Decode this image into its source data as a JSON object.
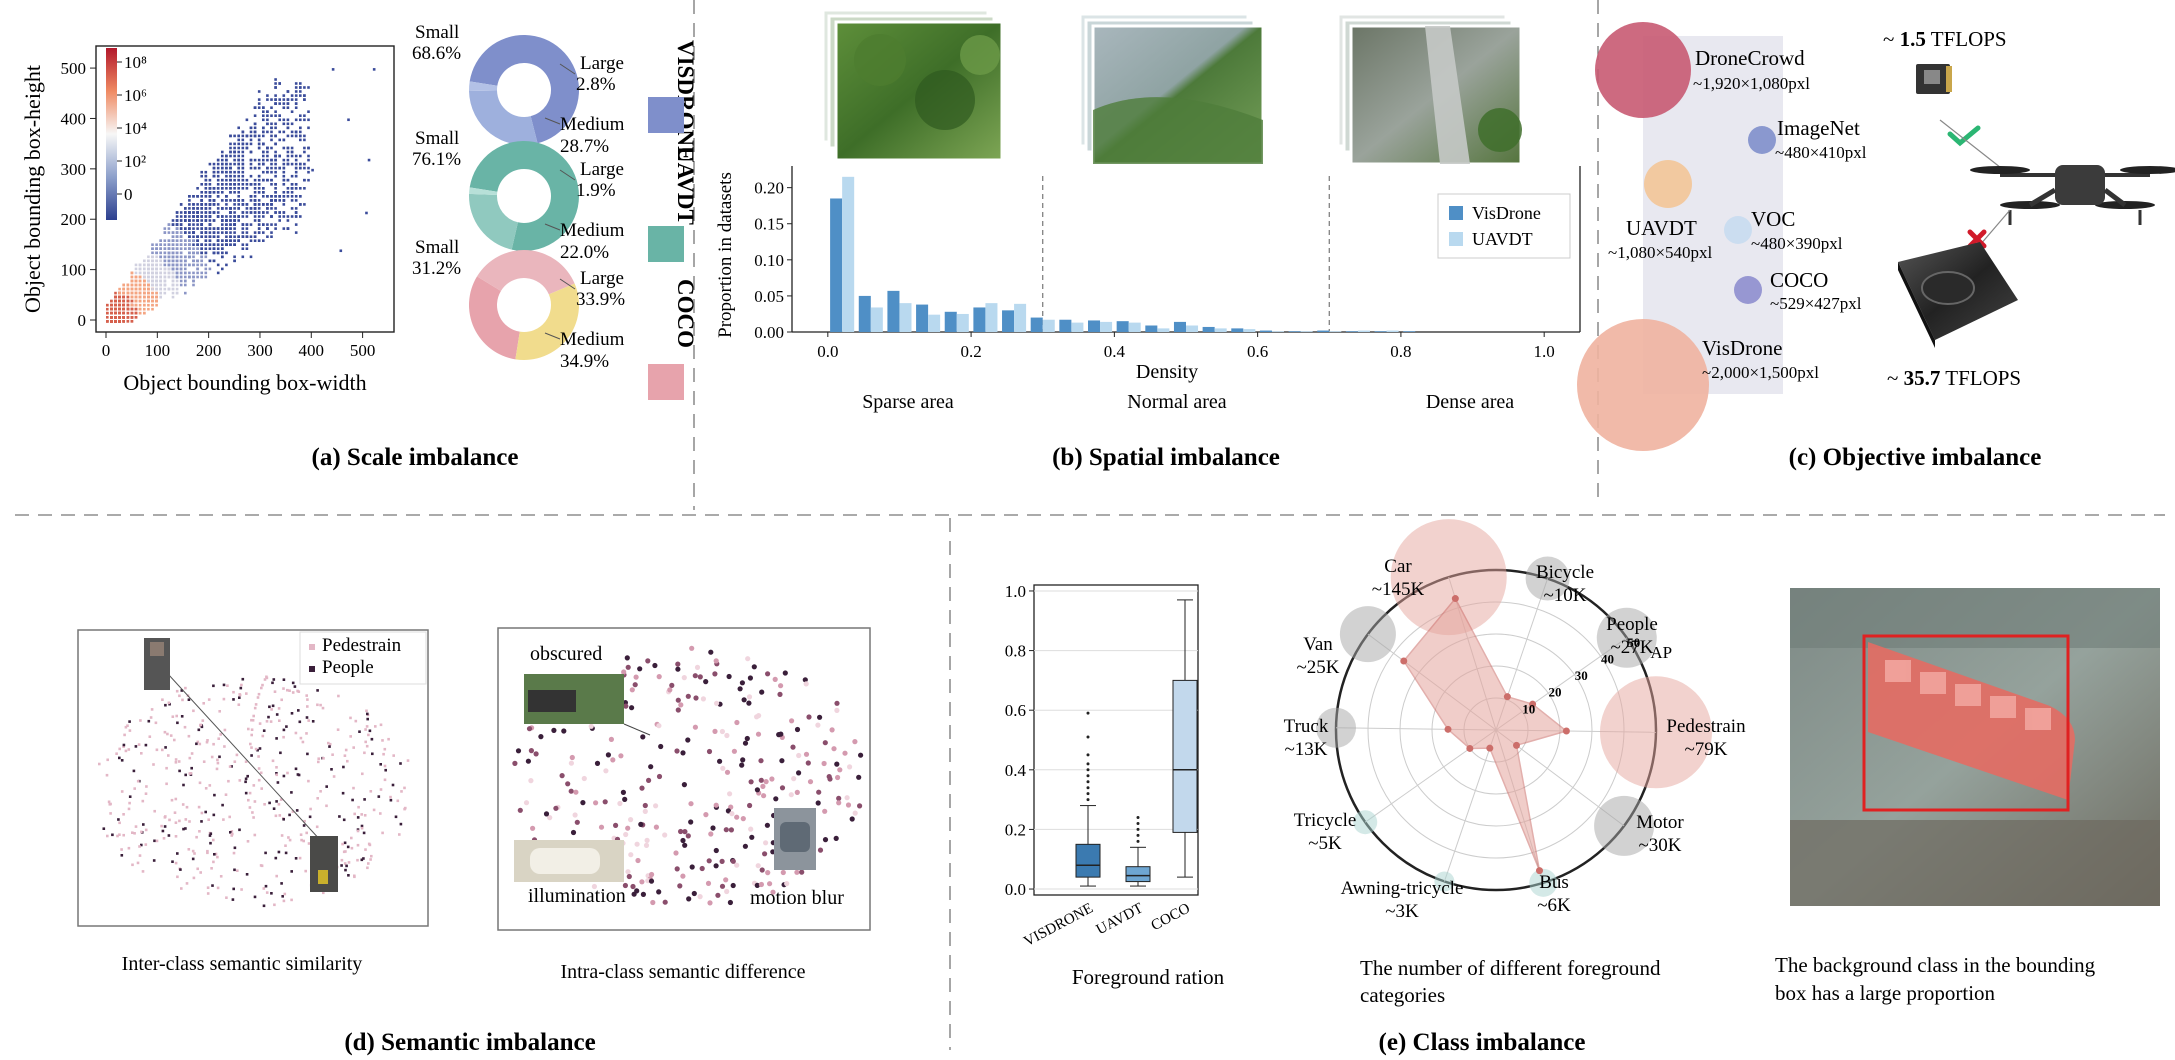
{
  "colors": {
    "visdrone": "#4f8fc6",
    "uavdt": "#b9d9ef",
    "donut_visdrone": "#7f8fcb",
    "donut_uavdt": "#69b4a6",
    "donut_coco": "#e7a3ac",
    "donut_coco_large": "#f1dc8d",
    "radar": "#e5a59d",
    "radar_line": "#cc6e6a",
    "pedestrain": "#e3b7c6",
    "people": "#3a1f3a",
    "red_box": "#e02121",
    "check": "#2bb673",
    "cross": "#d11a2a"
  },
  "captions": {
    "a": "(a) Scale imbalance",
    "b": "(b) Spatial imbalance",
    "c": "(c) Objective imbalance",
    "d": "(d) Semantic imbalance",
    "e": "(e) Class imbalance"
  },
  "panel_a": {
    "xlabel": "Object bounding box-width",
    "ylabel": "Object bounding box-height",
    "xticks": [
      "0",
      "100",
      "200",
      "300",
      "400",
      "500"
    ],
    "yticks": [
      "0",
      "100",
      "200",
      "300",
      "400",
      "500"
    ],
    "colorbar_ticks": [
      "10⁸",
      "10⁶",
      "10⁴",
      "10²",
      "0"
    ],
    "donuts": [
      {
        "dataset": "VISDRONE",
        "small_label": "Small",
        "small": "68.6%",
        "large_label": "Large",
        "large": "2.8%",
        "medium_label": "Medium",
        "medium": "28.7%"
      },
      {
        "dataset": "UAVDT",
        "small_label": "Small",
        "small": "76.1%",
        "large_label": "Large",
        "large": "1.9%",
        "medium_label": "Medium",
        "medium": "22.0%"
      },
      {
        "dataset": "COCO",
        "small_label": "Small",
        "small": "31.2%",
        "large_label": "Large",
        "large": "33.9%",
        "medium_label": "Medium",
        "medium": "34.9%"
      }
    ]
  },
  "panel_b": {
    "regions": [
      "Sparse area",
      "Normal area",
      "Dense area"
    ]
  },
  "panel_c": {
    "top_flops": {
      "prefix": "~ ",
      "value": "1.5",
      "unit": " TFLOPS"
    },
    "bottom_flops": {
      "prefix": "~ ",
      "value": "35.7",
      "unit": " TFLOPS"
    },
    "datasets": [
      {
        "name": "DroneCrowd",
        "res": "~1,920×1,080pxl",
        "color": "#c85a72"
      },
      {
        "name": "ImageNet",
        "res": "~480×410pxl",
        "color": "#7f8fcb"
      },
      {
        "name": "UAVDT",
        "res": "~1,080×540pxl",
        "color": "#f3c597"
      },
      {
        "name": "VOC",
        "res": "~480×390pxl",
        "color": "#c8dcef"
      },
      {
        "name": "COCO",
        "res": "~529×427pxl",
        "color": "#8e8ece"
      },
      {
        "name": "VisDrone",
        "res": "~2,000×1,500pxl",
        "color": "#f0b3a0"
      }
    ]
  },
  "panel_d": {
    "left_caption": "Inter-class semantic similarity",
    "right_caption": "Intra-class semantic difference",
    "legend": [
      "Pedestrain",
      "People"
    ],
    "labels": {
      "obscured": "obscured",
      "illumination": "illumination",
      "motion_blur": "motion blur"
    }
  },
  "panel_e": {
    "box_caption": "Foreground ration",
    "radar_caption_1": "The number of different foreground",
    "radar_caption_2": "categories",
    "image_caption_1": "The background class in the bounding",
    "image_caption_2": "box has a large proportion",
    "radar_ap_label": "AP",
    "radar_ap_ticks": [
      "10",
      "20",
      "30",
      "40",
      "50"
    ]
  },
  "chart_data": [
    {
      "type": "scatter",
      "xlabel": "Object bounding box-width",
      "ylabel": "Object bounding box-height",
      "xlim": [
        0,
        530
      ],
      "ylim": [
        0,
        520
      ],
      "colorbar": "log count 0 to 10^8",
      "density_trend": "dense near origin, spreading along y≈0.8x"
    },
    {
      "type": "pie",
      "title": "VISDRONE",
      "categories": [
        "Small",
        "Medium",
        "Large"
      ],
      "values": [
        68.6,
        28.7,
        2.8
      ]
    },
    {
      "type": "pie",
      "title": "UAVDT",
      "categories": [
        "Small",
        "Medium",
        "Large"
      ],
      "values": [
        76.1,
        22.0,
        1.9
      ]
    },
    {
      "type": "pie",
      "title": "COCO",
      "categories": [
        "Small",
        "Medium",
        "Large"
      ],
      "values": [
        31.2,
        34.9,
        33.9
      ]
    },
    {
      "type": "bar",
      "xlabel": "Density",
      "ylabel": "Proportion in datasets",
      "xlim": [
        -0.05,
        1.05
      ],
      "ylim": [
        0,
        0.23
      ],
      "xticks": [
        0.0,
        0.2,
        0.4,
        0.6,
        0.8,
        1.0
      ],
      "yticks": [
        0.0,
        0.05,
        0.1,
        0.15,
        0.2
      ],
      "dividers": [
        0.3,
        0.7
      ],
      "legend_position": "right",
      "x": [
        0.02,
        0.06,
        0.1,
        0.14,
        0.18,
        0.22,
        0.26,
        0.3,
        0.34,
        0.38,
        0.42,
        0.46,
        0.5,
        0.54,
        0.58,
        0.62,
        0.66,
        0.7,
        0.74,
        0.78,
        0.82,
        0.86,
        0.9,
        0.94,
        0.98
      ],
      "series": [
        {
          "name": "VisDrone",
          "values": [
            0.185,
            0.05,
            0.057,
            0.038,
            0.028,
            0.034,
            0.03,
            0.02,
            0.017,
            0.016,
            0.015,
            0.009,
            0.014,
            0.007,
            0.005,
            0.002,
            0.001,
            0.002,
            0.001,
            0.001,
            0.001,
            0.0,
            0.0,
            0.0,
            0.0
          ]
        },
        {
          "name": "UAVDT",
          "values": [
            0.215,
            0.034,
            0.04,
            0.024,
            0.025,
            0.04,
            0.039,
            0.017,
            0.013,
            0.014,
            0.013,
            0.005,
            0.009,
            0.005,
            0.004,
            0.001,
            0.001,
            0.001,
            0.002,
            0.002,
            0.0,
            0.0,
            0.0,
            0.0,
            0.0
          ]
        }
      ]
    },
    {
      "type": "box",
      "xlabel": "Foreground ration",
      "ylim": [
        -0.02,
        1.02
      ],
      "yticks": [
        0.0,
        0.2,
        0.4,
        0.6,
        0.8,
        1.0
      ],
      "categories": [
        "VISDRONE",
        "UAVDT",
        "COCO"
      ],
      "boxes": [
        {
          "name": "VISDRONE",
          "min": 0.01,
          "q1": 0.04,
          "median": 0.08,
          "q3": 0.15,
          "max": 0.28,
          "outliers": [
            0.3,
            0.32,
            0.34,
            0.36,
            0.38,
            0.4,
            0.42,
            0.45,
            0.51,
            0.59
          ]
        },
        {
          "name": "UAVDT",
          "min": 0.01,
          "q1": 0.025,
          "median": 0.045,
          "q3": 0.075,
          "max": 0.14,
          "outliers": [
            0.16,
            0.18,
            0.2,
            0.22,
            0.24
          ]
        },
        {
          "name": "COCO",
          "min": 0.04,
          "q1": 0.19,
          "median": 0.4,
          "q3": 0.7,
          "max": 0.97,
          "outliers": []
        }
      ]
    },
    {
      "type": "radar",
      "categories": [
        "Car",
        "Bicycle",
        "People",
        "Pedestrain",
        "Motor",
        "Bus",
        "Awning-tricycle",
        "Tricycle",
        "Truck",
        "Van"
      ],
      "counts": [
        "~145K",
        "~10K",
        "~27K",
        "~79K",
        "~30K",
        "~6K",
        "~3K",
        "~5K",
        "~13K",
        "~25K"
      ],
      "ap": [
        43,
        11,
        14,
        22,
        8,
        46,
        6,
        10,
        15,
        36
      ],
      "ap_range": [
        0,
        50
      ]
    }
  ]
}
